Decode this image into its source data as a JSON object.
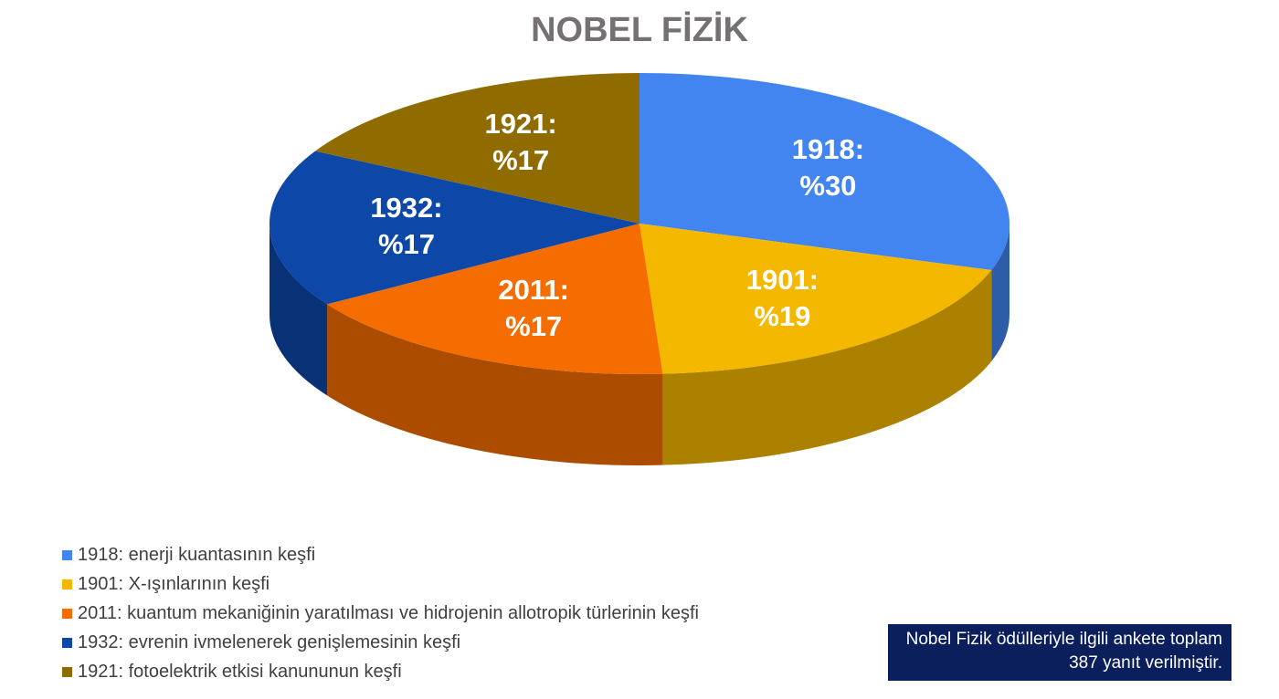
{
  "chart_data": {
    "type": "pie",
    "title": "NOBEL FİZİK",
    "categories": [
      "1918: enerji kuantasının keşfi",
      "1901: X-ışınlarının keşfi",
      "2011: kuantum mekaniğinin yaratılması ve hidrojenin allotropik türlerinin keşfi",
      "1932: evrenin ivmelenerek genişlemesinin keşfi",
      "1921: fotoelektrik etkisi kanununun keşfi"
    ],
    "values": [
      30,
      19,
      17,
      17,
      17
    ],
    "value_labels": [
      "1918: %30",
      "1901: %19",
      "2011: %17",
      "1932: %17",
      "1921: %17"
    ],
    "colors": [
      "#4285f0",
      "#f5b800",
      "#f56c00",
      "#0d47a8",
      "#8f6b00"
    ],
    "legend": "bottom-left",
    "annotation": "Nobel Fizik ödülleriyle ilgili ankete toplam 387 yanıt verilmiştir."
  }
}
